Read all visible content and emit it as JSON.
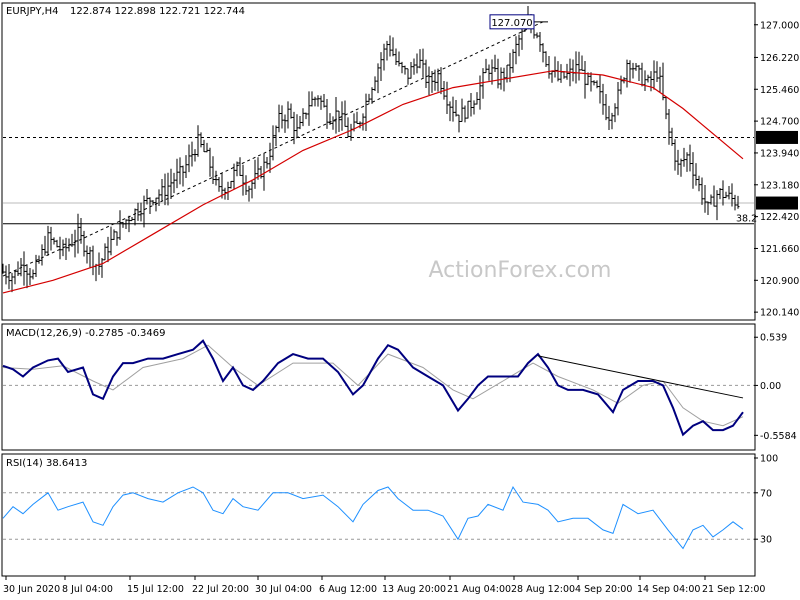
{
  "header": {
    "symbol_label": "EURJPY,H4",
    "ohlc": "122.874 122.898 122.721 122.744"
  },
  "watermark": "ActionForex.com",
  "chart_data": [
    {
      "type": "bar",
      "subtype": "ohlc",
      "symbol": "EURJPY",
      "timeframe": "H4",
      "yticks": [
        "127.000",
        "126.220",
        "125.460",
        "124.700",
        "123.940",
        "123.180",
        "122.420",
        "121.660",
        "120.900",
        "120.140"
      ],
      "ylim": [
        120.0,
        127.4
      ],
      "last_price": "122.744",
      "level_label": "124.310",
      "level": 124.31,
      "fib_level": 122.25,
      "fib_label": "38.2",
      "peak_label": "127.070",
      "peak": 127.07,
      "close_path": [
        [
          0,
          121.1
        ],
        [
          10,
          121.0
        ],
        [
          20,
          121.3
        ],
        [
          30,
          121.0
        ],
        [
          45,
          121.9
        ],
        [
          60,
          121.6
        ],
        [
          75,
          122.0
        ],
        [
          85,
          121.6
        ],
        [
          95,
          121.2
        ],
        [
          105,
          121.7
        ],
        [
          115,
          122.1
        ],
        [
          125,
          122.4
        ],
        [
          135,
          122.6
        ],
        [
          150,
          122.9
        ],
        [
          160,
          123.0
        ],
        [
          170,
          123.3
        ],
        [
          180,
          123.5
        ],
        [
          195,
          124.2
        ],
        [
          205,
          123.8
        ],
        [
          215,
          123.0
        ],
        [
          225,
          123.2
        ],
        [
          235,
          123.6
        ],
        [
          245,
          123.1
        ],
        [
          255,
          123.4
        ],
        [
          265,
          123.8
        ],
        [
          275,
          124.7
        ],
        [
          285,
          124.9
        ],
        [
          295,
          124.4
        ],
        [
          305,
          125.1
        ],
        [
          315,
          125.3
        ],
        [
          325,
          124.8
        ],
        [
          335,
          124.9
        ],
        [
          345,
          124.4
        ],
        [
          355,
          124.6
        ],
        [
          365,
          125.3
        ],
        [
          375,
          126.0
        ],
        [
          385,
          126.6
        ],
        [
          395,
          126.0
        ],
        [
          405,
          125.8
        ],
        [
          415,
          126.2
        ],
        [
          425,
          125.6
        ],
        [
          435,
          125.8
        ],
        [
          445,
          125.2
        ],
        [
          455,
          124.8
        ],
        [
          465,
          125.0
        ],
        [
          475,
          125.4
        ],
        [
          485,
          126.0
        ],
        [
          495,
          125.7
        ],
        [
          505,
          125.9
        ],
        [
          515,
          126.6
        ],
        [
          525,
          127.0
        ],
        [
          535,
          126.8
        ],
        [
          545,
          126.0
        ],
        [
          555,
          125.7
        ],
        [
          565,
          125.8
        ],
        [
          575,
          126.0
        ],
        [
          585,
          125.6
        ],
        [
          595,
          125.4
        ],
        [
          605,
          124.8
        ],
        [
          615,
          125.3
        ],
        [
          625,
          126.2
        ],
        [
          635,
          125.8
        ],
        [
          645,
          125.6
        ],
        [
          655,
          125.9
        ],
        [
          665,
          124.5
        ],
        [
          675,
          123.6
        ],
        [
          685,
          123.9
        ],
        [
          695,
          123.2
        ],
        [
          705,
          122.6
        ],
        [
          715,
          123.0
        ],
        [
          725,
          122.9
        ],
        [
          735,
          122.744
        ]
      ],
      "ma_path": [
        [
          0,
          120.6
        ],
        [
          50,
          120.9
        ],
        [
          100,
          121.3
        ],
        [
          150,
          122.0
        ],
        [
          200,
          122.7
        ],
        [
          250,
          123.3
        ],
        [
          300,
          124.0
        ],
        [
          350,
          124.5
        ],
        [
          400,
          125.1
        ],
        [
          450,
          125.5
        ],
        [
          500,
          125.7
        ],
        [
          550,
          125.9
        ],
        [
          600,
          125.8
        ],
        [
          650,
          125.5
        ],
        [
          680,
          125.0
        ],
        [
          700,
          124.6
        ],
        [
          720,
          124.2
        ],
        [
          740,
          123.8
        ]
      ],
      "trendline": [
        [
          0,
          121.0
        ],
        [
          540,
          127.07
        ]
      ]
    },
    {
      "type": "line",
      "name": "MACD",
      "title": "MACD(12,26,9) -0.2785 -0.3469",
      "yticks": [
        "0.539",
        "0.00",
        "-0.5584"
      ],
      "ylim": [
        -0.7,
        0.62
      ],
      "macd_path": [
        [
          0,
          0.22
        ],
        [
          10,
          0.18
        ],
        [
          20,
          0.1
        ],
        [
          30,
          0.2
        ],
        [
          45,
          0.28
        ],
        [
          55,
          0.3
        ],
        [
          65,
          0.15
        ],
        [
          80,
          0.2
        ],
        [
          90,
          -0.1
        ],
        [
          100,
          -0.15
        ],
        [
          110,
          0.1
        ],
        [
          120,
          0.25
        ],
        [
          130,
          0.25
        ],
        [
          145,
          0.3
        ],
        [
          160,
          0.3
        ],
        [
          175,
          0.35
        ],
        [
          190,
          0.4
        ],
        [
          200,
          0.5
        ],
        [
          210,
          0.3
        ],
        [
          220,
          0.05
        ],
        [
          230,
          0.2
        ],
        [
          240,
          0.0
        ],
        [
          250,
          -0.05
        ],
        [
          260,
          0.05
        ],
        [
          275,
          0.25
        ],
        [
          290,
          0.35
        ],
        [
          305,
          0.3
        ],
        [
          320,
          0.3
        ],
        [
          335,
          0.15
        ],
        [
          350,
          -0.1
        ],
        [
          360,
          0.0
        ],
        [
          375,
          0.3
        ],
        [
          385,
          0.45
        ],
        [
          395,
          0.4
        ],
        [
          410,
          0.2
        ],
        [
          425,
          0.1
        ],
        [
          440,
          0.0
        ],
        [
          455,
          -0.28
        ],
        [
          465,
          -0.15
        ],
        [
          475,
          0.0
        ],
        [
          485,
          0.1
        ],
        [
          500,
          0.1
        ],
        [
          515,
          0.1
        ],
        [
          525,
          0.25
        ],
        [
          535,
          0.35
        ],
        [
          545,
          0.2
        ],
        [
          555,
          0.0
        ],
        [
          565,
          -0.05
        ],
        [
          580,
          -0.05
        ],
        [
          595,
          -0.1
        ],
        [
          610,
          -0.3
        ],
        [
          620,
          -0.05
        ],
        [
          635,
          0.05
        ],
        [
          650,
          0.05
        ],
        [
          660,
          0.0
        ],
        [
          670,
          -0.25
        ],
        [
          680,
          -0.55
        ],
        [
          690,
          -0.45
        ],
        [
          700,
          -0.4
        ],
        [
          710,
          -0.5
        ],
        [
          720,
          -0.5
        ],
        [
          730,
          -0.45
        ],
        [
          740,
          -0.3
        ]
      ],
      "signal_path": [
        [
          0,
          0.2
        ],
        [
          30,
          0.18
        ],
        [
          60,
          0.22
        ],
        [
          90,
          0.05
        ],
        [
          110,
          -0.05
        ],
        [
          140,
          0.2
        ],
        [
          180,
          0.3
        ],
        [
          205,
          0.45
        ],
        [
          230,
          0.2
        ],
        [
          255,
          0.0
        ],
        [
          290,
          0.25
        ],
        [
          330,
          0.25
        ],
        [
          355,
          0.0
        ],
        [
          385,
          0.35
        ],
        [
          420,
          0.2
        ],
        [
          450,
          -0.05
        ],
        [
          470,
          -0.15
        ],
        [
          500,
          0.05
        ],
        [
          530,
          0.25
        ],
        [
          555,
          0.1
        ],
        [
          590,
          -0.05
        ],
        [
          615,
          -0.2
        ],
        [
          640,
          0.0
        ],
        [
          660,
          0.05
        ],
        [
          680,
          -0.25
        ],
        [
          700,
          -0.4
        ],
        [
          720,
          -0.45
        ],
        [
          740,
          -0.35
        ]
      ],
      "trendline": [
        [
          535,
          0.33
        ],
        [
          740,
          -0.14
        ]
      ]
    },
    {
      "type": "line",
      "name": "RSI",
      "title": "RSI(14) 38.6413",
      "yticks": [
        "100",
        "70",
        "30"
      ],
      "ylim": [
        0,
        100
      ],
      "rsi_path": [
        [
          0,
          48
        ],
        [
          10,
          58
        ],
        [
          20,
          52
        ],
        [
          30,
          60
        ],
        [
          45,
          70
        ],
        [
          55,
          55
        ],
        [
          65,
          58
        ],
        [
          80,
          62
        ],
        [
          90,
          45
        ],
        [
          100,
          42
        ],
        [
          110,
          58
        ],
        [
          120,
          68
        ],
        [
          130,
          70
        ],
        [
          145,
          65
        ],
        [
          160,
          62
        ],
        [
          175,
          70
        ],
        [
          190,
          75
        ],
        [
          200,
          70
        ],
        [
          210,
          55
        ],
        [
          220,
          52
        ],
        [
          230,
          65
        ],
        [
          240,
          58
        ],
        [
          255,
          55
        ],
        [
          270,
          70
        ],
        [
          285,
          70
        ],
        [
          300,
          65
        ],
        [
          320,
          68
        ],
        [
          335,
          58
        ],
        [
          350,
          45
        ],
        [
          360,
          60
        ],
        [
          375,
          72
        ],
        [
          385,
          75
        ],
        [
          395,
          65
        ],
        [
          410,
          55
        ],
        [
          425,
          55
        ],
        [
          440,
          50
        ],
        [
          455,
          30
        ],
        [
          465,
          48
        ],
        [
          475,
          50
        ],
        [
          485,
          60
        ],
        [
          500,
          55
        ],
        [
          510,
          75
        ],
        [
          520,
          62
        ],
        [
          535,
          60
        ],
        [
          545,
          55
        ],
        [
          555,
          45
        ],
        [
          570,
          48
        ],
        [
          585,
          48
        ],
        [
          600,
          38
        ],
        [
          610,
          35
        ],
        [
          620,
          60
        ],
        [
          635,
          52
        ],
        [
          650,
          55
        ],
        [
          665,
          38
        ],
        [
          680,
          22
        ],
        [
          690,
          38
        ],
        [
          700,
          42
        ],
        [
          710,
          32
        ],
        [
          720,
          38
        ],
        [
          730,
          45
        ],
        [
          740,
          38.6
        ]
      ]
    }
  ],
  "time_axis": [
    "30 Jun 2020",
    "8 Jul 04:00",
    "15 Jul 12:00",
    "22 Jul 20:00",
    "30 Jul 04:00",
    "6 Aug 12:00",
    "13 Aug 20:00",
    "21 Aug 04:00",
    "28 Aug 12:00",
    "4 Sep 20:00",
    "14 Sep 04:00",
    "21 Sep 12:00"
  ],
  "colors": {
    "price_bars": "#000000",
    "moving_average": "#d40000",
    "macd": "#00007f",
    "macd_signal": "#a0a0a0",
    "rsi": "#1e90ff",
    "last_price_bg": "#000000",
    "level_bg": "#000000",
    "peak_border": "#00007f",
    "watermark": "#c8c8c8"
  }
}
